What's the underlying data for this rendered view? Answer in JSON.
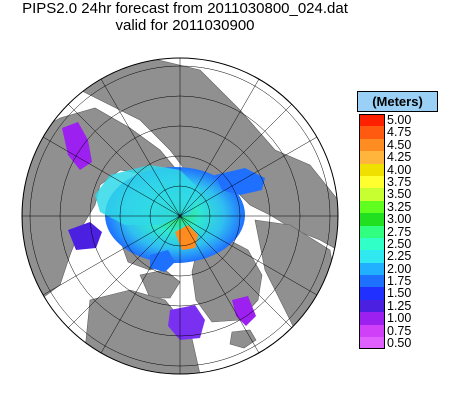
{
  "title": {
    "line1": "PIPS2.0 24hr forecast from 2011030800_024.dat",
    "line2": "valid for 2011030900"
  },
  "legend": {
    "header": "(Meters)",
    "entries": [
      {
        "label": "5.00",
        "color": "#ff2000"
      },
      {
        "label": "4.75",
        "color": "#ff5a10"
      },
      {
        "label": "4.50",
        "color": "#ff8c20"
      },
      {
        "label": "4.25",
        "color": "#ffb43c"
      },
      {
        "label": "4.00",
        "color": "#f0e000"
      },
      {
        "label": "3.75",
        "color": "#ffff30"
      },
      {
        "label": "3.50",
        "color": "#c8ff30"
      },
      {
        "label": "3.25",
        "color": "#60ff20"
      },
      {
        "label": "3.00",
        "color": "#20e020"
      },
      {
        "label": "2.75",
        "color": "#30ff80"
      },
      {
        "label": "2.50",
        "color": "#30ffc8"
      },
      {
        "label": "2.25",
        "color": "#30e8f0"
      },
      {
        "label": "2.00",
        "color": "#20b0ff"
      },
      {
        "label": "1.75",
        "color": "#1e70ff"
      },
      {
        "label": "1.50",
        "color": "#2030ff"
      },
      {
        "label": "1.25",
        "color": "#4c20e0"
      },
      {
        "label": "1.00",
        "color": "#9c20f0"
      },
      {
        "label": "0.75",
        "color": "#d040f8"
      },
      {
        "label": "0.50",
        "color": "#e060ff"
      }
    ]
  },
  "colors": {
    "land": "#909090",
    "ocean": "#ffffff",
    "graticule": "#000000"
  }
}
